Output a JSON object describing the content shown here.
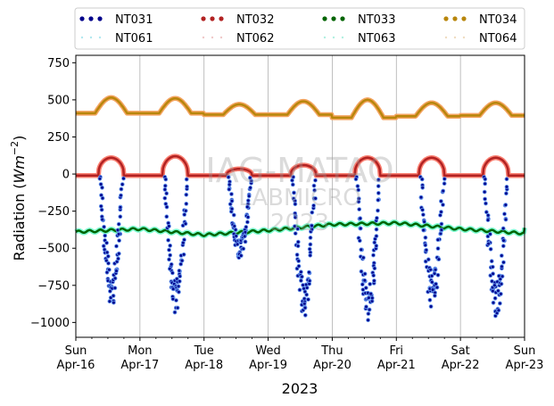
{
  "chart_data": {
    "type": "scatter",
    "ylabel": "Radiation ($Wm^{-2}$)",
    "ylabel_text": "Radiation (",
    "ylabel_unit": "Wm",
    "ylabel_exp": "−2",
    "ylabel_close": ")",
    "xlabel": "2023",
    "ylim": [
      -1100,
      800
    ],
    "yticks": [
      750,
      500,
      250,
      0,
      -250,
      -500,
      -750,
      -1000
    ],
    "ytick_labels": [
      "750",
      "500",
      "250",
      "0",
      "−250",
      "−500",
      "−750",
      "−1000"
    ],
    "xlim_days": [
      0,
      7
    ],
    "xticks": [
      {
        "day": 0,
        "dow": "Sun",
        "date": "Apr-16"
      },
      {
        "day": 1,
        "dow": "Mon",
        "date": "Apr-17"
      },
      {
        "day": 2,
        "dow": "Tue",
        "date": "Apr-18"
      },
      {
        "day": 3,
        "dow": "Wed",
        "date": "Apr-19"
      },
      {
        "day": 4,
        "dow": "Thu",
        "date": "Apr-20"
      },
      {
        "day": 5,
        "dow": "Fri",
        "date": "Apr-21"
      },
      {
        "day": 6,
        "dow": "Sat",
        "date": "Apr-22"
      },
      {
        "day": 7,
        "dow": "Sun",
        "date": "Apr-23"
      }
    ],
    "grid": "vertical",
    "legend_position": "top",
    "legend": [
      {
        "name": "NT031",
        "color": "#00008b",
        "style": "dots"
      },
      {
        "name": "NT032",
        "color": "#b22222",
        "style": "dots"
      },
      {
        "name": "NT033",
        "color": "#006400",
        "style": "dots"
      },
      {
        "name": "NT034",
        "color": "#b8860b",
        "style": "dots"
      },
      {
        "name": "NT061",
        "color": "#b0e8f0",
        "style": "faint"
      },
      {
        "name": "NT062",
        "color": "#f0c8c8",
        "style": "faint"
      },
      {
        "name": "NT063",
        "color": "#b0f0e0",
        "style": "faint"
      },
      {
        "name": "NT064",
        "color": "#f0dcc0",
        "style": "faint"
      }
    ],
    "series": [
      {
        "name": "NT034",
        "color": "#b8860b",
        "faint_color": "#f4a460",
        "daily_peaks": [
          515,
          510,
          470,
          490,
          500,
          480,
          480
        ],
        "night_level": [
          410,
          410,
          400,
          400,
          380,
          390,
          395
        ],
        "range": [
          360,
          525
        ]
      },
      {
        "name": "NT032",
        "color": "#b22222",
        "faint_color": "#fa8072",
        "daily_peaks": [
          110,
          120,
          35,
          60,
          110,
          110,
          110
        ],
        "night_level": [
          -10,
          -10,
          -10,
          -10,
          -10,
          -10,
          -10
        ],
        "range": [
          -15,
          125
        ]
      },
      {
        "name": "NT033",
        "color": "#006400",
        "faint_color": "#7fffd4",
        "levels": [
          -390,
          -370,
          -410,
          -380,
          -340,
          -330,
          -370,
          -400
        ],
        "range": [
          -430,
          -300
        ]
      },
      {
        "name": "NT031",
        "color": "#00008b",
        "faint_color": "#6495ed",
        "daily_minima": [
          -890,
          -950,
          -600,
          -960,
          -1000,
          -900,
          -970
        ],
        "range": [
          -1000,
          0
        ]
      }
    ],
    "colors": {
      "NT031": "#00008b",
      "NT032": "#b22222",
      "NT033": "#006400",
      "NT034": "#b8860b"
    }
  },
  "watermark": {
    "line1": "IAG-MATAO",
    "line2": "LABMICRO",
    "line3": "2023"
  }
}
